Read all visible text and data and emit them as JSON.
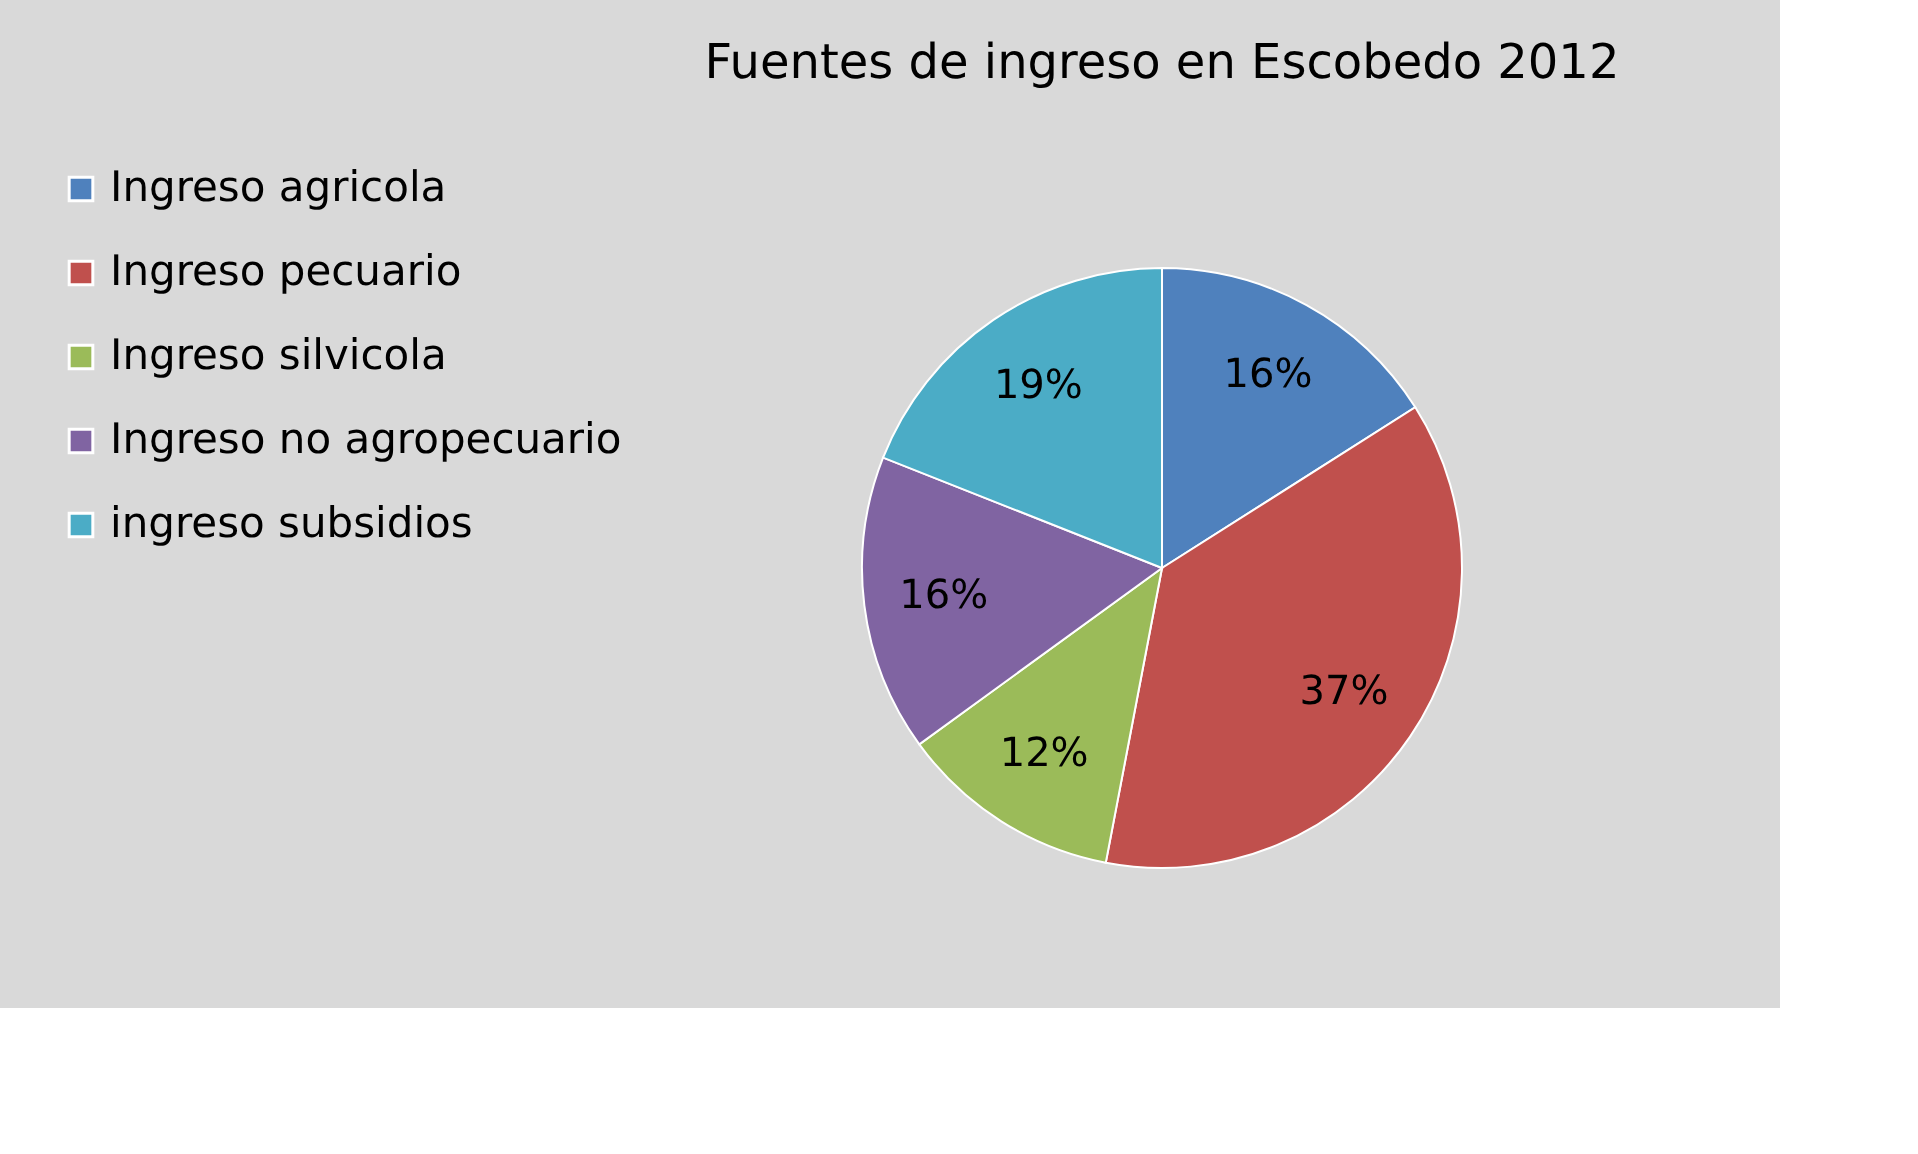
{
  "chart_data": {
    "type": "pie",
    "title": "Fuentes de ingreso en Escobedo 2012",
    "categories": [
      "Ingreso agricola",
      "Ingreso pecuario",
      "Ingreso silvicola",
      "Ingreso no agropecuario",
      "ingreso subsidios"
    ],
    "values": [
      16,
      37,
      12,
      16,
      19
    ],
    "colors": [
      "#4f81bd",
      "#c0504d",
      "#9bbb59",
      "#8064a2",
      "#4bacc6"
    ],
    "value_labels": [
      "16%",
      "37%",
      "12%",
      "16%",
      "19%"
    ],
    "legend": "left"
  }
}
